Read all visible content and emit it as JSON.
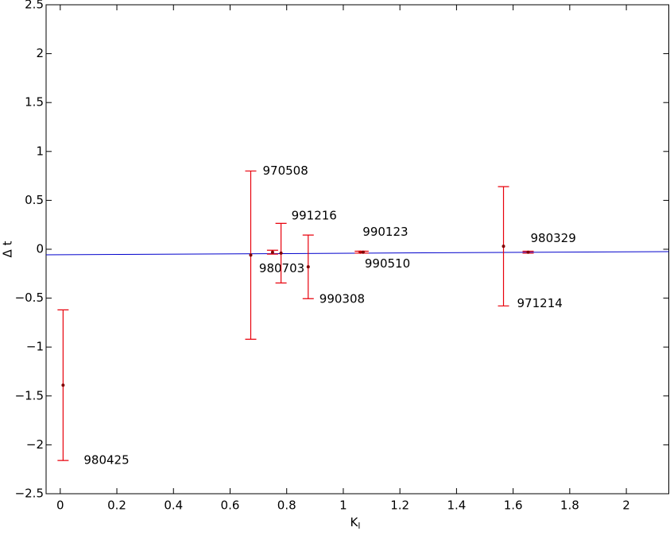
{
  "chart_data": {
    "type": "scatter",
    "xlabel": "K",
    "xlabel_subscript": "l",
    "ylabel": "Δ t",
    "xlim": [
      -0.05,
      2.15
    ],
    "ylim": [
      -2.5,
      2.5
    ],
    "xticks": [
      0,
      0.2,
      0.4,
      0.6,
      0.8,
      1,
      1.2,
      1.4,
      1.6,
      1.8,
      2
    ],
    "yticks": [
      {
        "value": -2.5,
        "label": "−2.5"
      },
      {
        "value": -2,
        "label": "−2"
      },
      {
        "value": -1.5,
        "label": "−1.5"
      },
      {
        "value": -1,
        "label": "−1"
      },
      {
        "value": -0.5,
        "label": "−0.5"
      },
      0,
      0.5,
      1,
      1.5,
      2,
      2.5
    ],
    "series": [
      {
        "color": "#e8000b",
        "labels": [
          "980425",
          "970508",
          "980703",
          "991216",
          "990308",
          "990123",
          "990510",
          "971214",
          "980329"
        ],
        "x": [
          0.01,
          0.673,
          0.75,
          0.78,
          0.876,
          1.06,
          1.07,
          1.566,
          1.653
        ],
        "values": [
          -1.39,
          -0.06,
          -0.03,
          -0.04,
          -0.18,
          -0.03,
          -0.03,
          0.03,
          -0.03
        ],
        "errors": [
          0.77,
          0.86,
          0.02,
          0.305,
          0.325,
          0.01,
          0.01,
          0.61,
          0.01
        ]
      }
    ],
    "fit": {
      "color": "#0000cc",
      "x": [
        -0.05,
        2.15
      ],
      "values": [
        -0.057,
        -0.024
      ]
    }
  }
}
